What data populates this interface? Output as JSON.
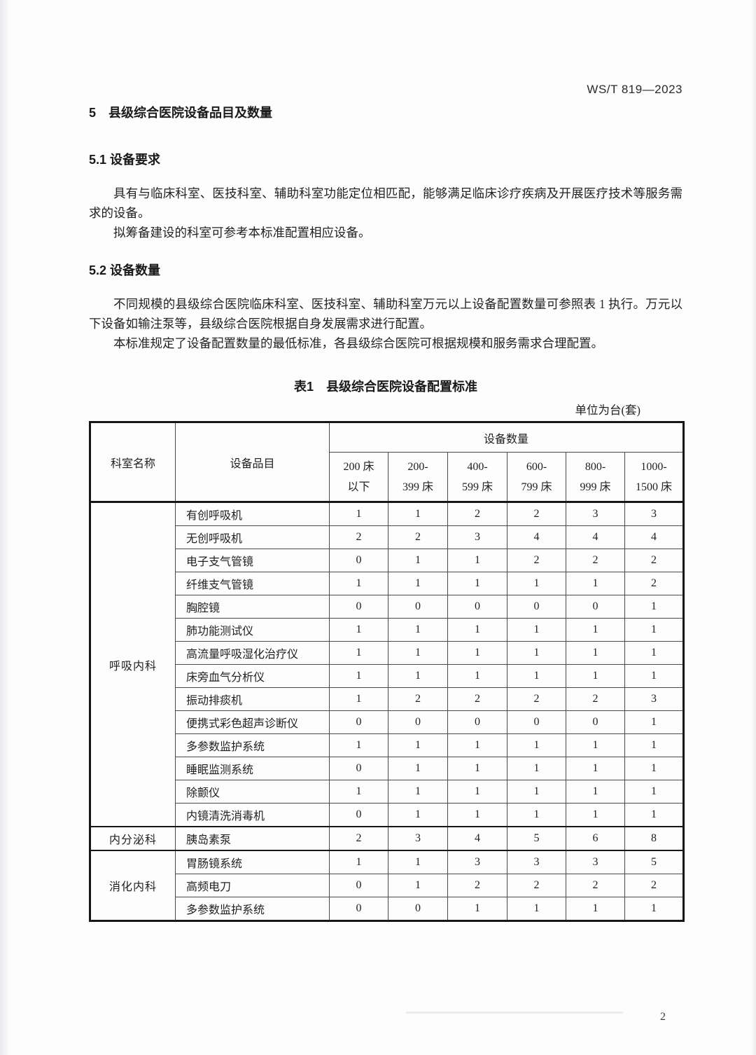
{
  "header": {
    "doc_code": "WS/T 819—2023"
  },
  "section5": {
    "title": "5　县级综合医院设备品目及数量"
  },
  "section51": {
    "title": "5.1 设备要求",
    "para1": "具有与临床科室、医技科室、辅助科室功能定位相匹配，能够满足临床诊疗疾病及开展医疗技术等服务需求的设备。",
    "para2": "拟筹备建设的科室可参考本标准配置相应设备。"
  },
  "section52": {
    "title": "5.2 设备数量",
    "para1": "不同规模的县级综合医院临床科室、医技科室、辅助科室万元以上设备配置数量可参照表 1 执行。万元以下设备如输注泵等，县级综合医院根据自身发展需求进行配置。",
    "para2": "本标准规定了设备配置数量的最低标准，各县级综合医院可根据规模和服务需求合理配置。"
  },
  "table1": {
    "caption": "表1　县级综合医院设备配置标准",
    "unit_note": "单位为台(套)",
    "header": {
      "col_department": "科室名称",
      "col_device": "设备品目",
      "col_quantity_group": "设备数量",
      "bed_columns": [
        [
          "200 床",
          "以下"
        ],
        [
          "200-",
          "399 床"
        ],
        [
          "400-",
          "599 床"
        ],
        [
          "600-",
          "799 床"
        ],
        [
          "800-",
          "999 床"
        ],
        [
          "1000-",
          "1500 床"
        ]
      ]
    },
    "groups": [
      {
        "department": "呼吸内科",
        "rows": [
          {
            "device": "有创呼吸机",
            "values": [
              "1",
              "1",
              "2",
              "2",
              "3",
              "3"
            ]
          },
          {
            "device": "无创呼吸机",
            "values": [
              "2",
              "2",
              "3",
              "4",
              "4",
              "4"
            ]
          },
          {
            "device": "电子支气管镜",
            "values": [
              "0",
              "1",
              "1",
              "2",
              "2",
              "2"
            ]
          },
          {
            "device": "纤维支气管镜",
            "values": [
              "1",
              "1",
              "1",
              "1",
              "1",
              "2"
            ]
          },
          {
            "device": "胸腔镜",
            "values": [
              "0",
              "0",
              "0",
              "0",
              "0",
              "1"
            ]
          },
          {
            "device": "肺功能测试仪",
            "values": [
              "1",
              "1",
              "1",
              "1",
              "1",
              "1"
            ]
          },
          {
            "device": "高流量呼吸湿化治疗仪",
            "values": [
              "1",
              "1",
              "1",
              "1",
              "1",
              "1"
            ]
          },
          {
            "device": "床旁血气分析仪",
            "values": [
              "1",
              "1",
              "1",
              "1",
              "1",
              "1"
            ]
          },
          {
            "device": "振动排痰机",
            "values": [
              "1",
              "2",
              "2",
              "2",
              "2",
              "3"
            ]
          },
          {
            "device": "便携式彩色超声诊断仪",
            "values": [
              "0",
              "0",
              "0",
              "0",
              "0",
              "1"
            ]
          },
          {
            "device": "多参数监护系统",
            "values": [
              "1",
              "1",
              "1",
              "1",
              "1",
              "1"
            ]
          },
          {
            "device": "睡眠监测系统",
            "values": [
              "0",
              "1",
              "1",
              "1",
              "1",
              "1"
            ]
          },
          {
            "device": "除颤仪",
            "values": [
              "1",
              "1",
              "1",
              "1",
              "1",
              "1"
            ]
          },
          {
            "device": "内镜清洗消毒机",
            "values": [
              "0",
              "1",
              "1",
              "1",
              "1",
              "1"
            ]
          }
        ]
      },
      {
        "department": "内分泌科",
        "rows": [
          {
            "device": "胰岛素泵",
            "values": [
              "2",
              "3",
              "4",
              "5",
              "6",
              "8"
            ]
          }
        ]
      },
      {
        "department": "消化内科",
        "rows": [
          {
            "device": "胃肠镜系统",
            "values": [
              "1",
              "1",
              "3",
              "3",
              "3",
              "5"
            ]
          },
          {
            "device": "高频电刀",
            "values": [
              "0",
              "1",
              "2",
              "2",
              "2",
              "2"
            ]
          },
          {
            "device": "多参数监护系统",
            "values": [
              "0",
              "0",
              "1",
              "1",
              "1",
              "1"
            ]
          }
        ]
      }
    ]
  },
  "footer": {
    "page_number": "2"
  }
}
